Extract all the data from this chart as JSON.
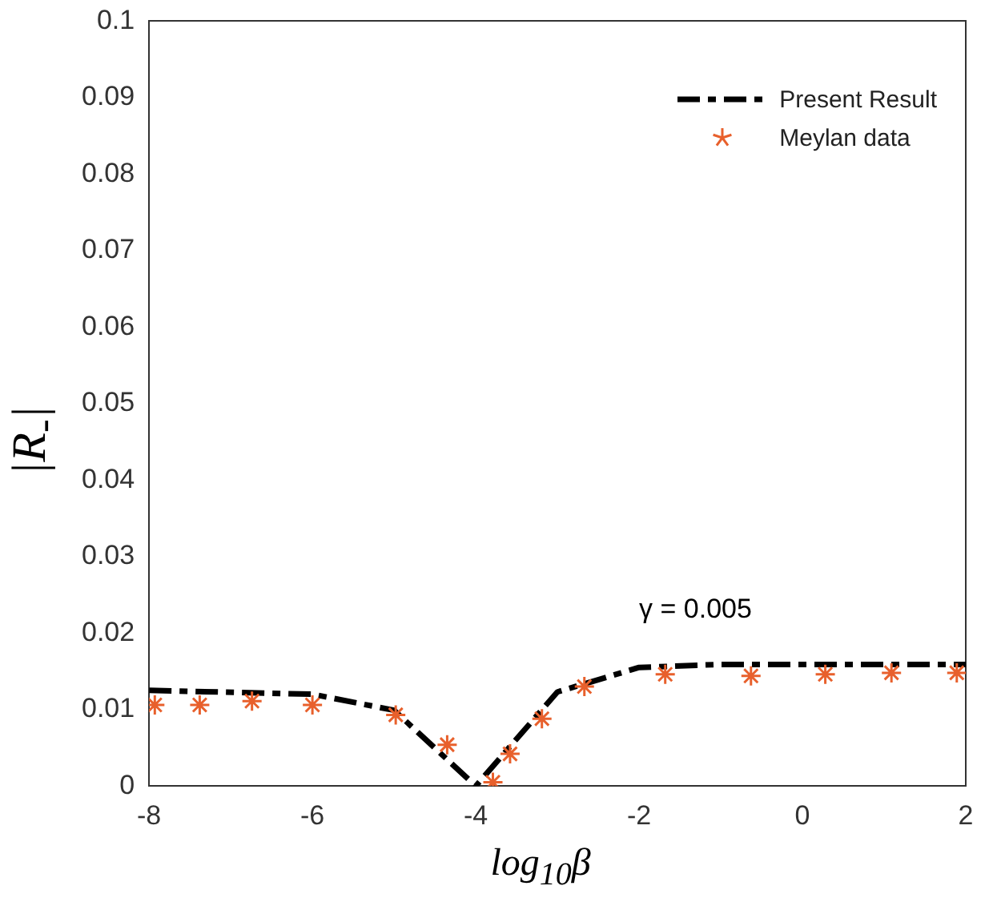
{
  "chart_data": {
    "type": "line",
    "xlabel": "log$_{10}$β",
    "ylabel": "|R$_{-}$|",
    "annotations": [
      "γ = 0.005"
    ],
    "xlim": [
      -8,
      2
    ],
    "xticks": [
      -8,
      -6,
      -4,
      -2,
      0,
      2
    ],
    "ylim": [
      0,
      0.1
    ],
    "yticks": [
      0,
      0.01,
      0.02,
      0.03,
      0.04,
      0.05,
      0.06,
      0.07,
      0.08,
      0.09,
      0.1
    ],
    "grid": false,
    "legend": "top right",
    "series": [
      {
        "name": "Present Result",
        "color": "#000000",
        "line_style": "dashed",
        "marker": "none",
        "x": [
          -8,
          -6,
          -5,
          -4,
          -3,
          -2,
          -1,
          2
        ],
        "values": [
          0.0125,
          0.012,
          0.0099,
          0,
          0.0123,
          0.0155,
          0.0159,
          0.0159
        ]
      },
      {
        "name": "Meylan data",
        "type": "scatter",
        "color": "#e8602c",
        "marker": "cross",
        "x": [
          -7.93,
          -7.38,
          -6.74,
          -6.0,
          -4.98,
          -4.35,
          -3.79,
          -3.58,
          -3.19,
          -2.67,
          -1.68,
          -0.63,
          0.28,
          1.09,
          1.89
        ],
        "values": [
          0.0106,
          0.0106,
          0.0111,
          0.0106,
          0.0093,
          0.0054,
          0.0005,
          0.0042,
          0.0088,
          0.013,
          0.0146,
          0.0144,
          0.0146,
          0.0148,
          0.0148
        ]
      }
    ]
  }
}
